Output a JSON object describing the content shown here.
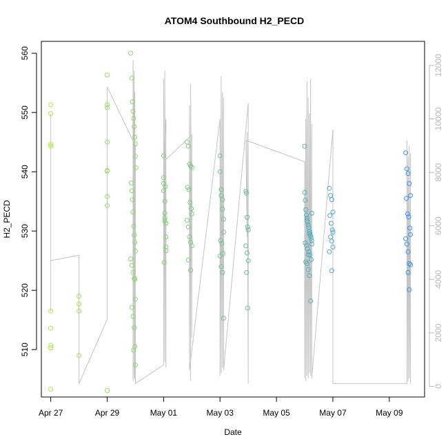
{
  "chart_data": {
    "type": "scatter",
    "title": "ATOM4 Southbound H2_PECD",
    "xlabel": "Date",
    "ylabel": "H2_PECD",
    "x_ticks": [
      "Apr 27",
      "Apr 29",
      "May 01",
      "May 03",
      "May 05",
      "May 07",
      "May 09"
    ],
    "y_ticks": [
      510,
      520,
      530,
      540,
      550,
      560
    ],
    "y2_ticks": [
      0,
      2000,
      4000,
      6000,
      8000,
      10000,
      12000
    ],
    "xlim": [
      "2017-04-26T16:00",
      "2017-05-10T06:00"
    ],
    "ylim": [
      502,
      562
    ],
    "y2lim": [
      -400,
      12900
    ],
    "grid": false,
    "colors": {
      "axis": "#000000",
      "secondary_axis": "#b8b8b8",
      "secondary_line": "#c4c4c4",
      "gradient_start": "#a6f032",
      "gradient_end": "#2e96f5"
    },
    "series": [
      {
        "type": "points",
        "x": [
          "2017-04-27T00:00",
          "2017-04-27T00:00",
          "2017-04-27T00:00",
          "2017-04-27T00:00",
          "2017-04-27T00:00",
          "2017-04-27T00:00",
          "2017-04-27T00:00",
          "2017-04-27T00:00",
          "2017-04-27T00:00",
          "2017-04-28T00:00",
          "2017-04-28T00:00",
          "2017-04-28T00:00",
          "2017-04-28T00:00",
          "2017-04-29T00:00",
          "2017-04-29T00:00",
          "2017-04-29T00:00",
          "2017-04-29T00:00",
          "2017-04-29T00:00",
          "2017-04-29T00:00",
          "2017-04-29T00:00",
          "2017-04-29T00:00",
          "2017-04-29T00:00",
          "2017-04-29T20:00",
          "2017-04-29T21:00",
          "2017-04-29T21:30",
          "2017-04-29T22:00",
          "2017-04-29T22:30",
          "2017-04-29T23:00",
          "2017-04-29T23:30",
          "2017-04-30T00:00",
          "2017-04-30T00:00",
          "2017-04-30T00:30",
          "2017-04-29T20:30",
          "2017-04-29T21:00",
          "2017-04-29T21:30",
          "2017-04-29T22:00",
          "2017-04-29T22:30",
          "2017-04-29T23:00",
          "2017-04-29T23:30",
          "2017-04-30T00:00",
          "2017-04-29T20:00",
          "2017-04-29T21:00",
          "2017-04-29T22:00",
          "2017-04-29T23:00",
          "2017-04-29T23:30",
          "2017-04-30T00:00",
          "2017-04-29T21:00",
          "2017-04-29T22:00",
          "2017-04-29T23:00",
          "2017-04-29T23:30",
          "2017-04-29T22:30",
          "2017-04-30T00:00",
          "2017-05-01T00:00",
          "2017-05-01T00:00",
          "2017-05-01T00:00",
          "2017-05-01T00:00",
          "2017-05-01T01:00",
          "2017-05-01T01:00",
          "2017-05-01T01:00",
          "2017-05-01T01:00",
          "2017-05-01T02:00",
          "2017-05-01T02:00",
          "2017-05-01T02:00",
          "2017-05-01T02:00",
          "2017-05-01T00:30",
          "2017-05-01T01:30",
          "2017-05-01T20:00",
          "2017-05-01T21:00",
          "2017-05-01T22:00",
          "2017-05-01T23:00",
          "2017-05-02T00:00",
          "2017-05-01T20:30",
          "2017-05-01T21:30",
          "2017-05-01T22:30",
          "2017-05-01T23:30",
          "2017-05-02T00:00",
          "2017-05-01T20:00",
          "2017-05-01T21:00",
          "2017-05-01T22:00",
          "2017-05-01T23:00",
          "2017-05-02T00:00",
          "2017-05-01T21:00",
          "2017-05-01T23:00",
          "2017-05-03T00:00",
          "2017-05-03T00:00",
          "2017-05-03T01:00",
          "2017-05-03T01:00",
          "2017-05-03T02:00",
          "2017-05-03T02:00",
          "2017-05-03T03:00",
          "2017-05-03T03:00",
          "2017-05-03T00:30",
          "2017-05-03T01:30",
          "2017-05-03T02:30",
          "2017-05-03T00:00",
          "2017-05-03T01:00",
          "2017-05-03T02:00",
          "2017-05-03T03:00",
          "2017-05-03T22:00",
          "2017-05-03T22:30",
          "2017-05-03T23:00",
          "2017-05-03T23:30",
          "2017-05-04T00:00",
          "2017-05-03T22:00",
          "2017-05-03T23:00",
          "2017-05-04T00:00",
          "2017-05-03T22:30",
          "2017-05-03T23:30",
          "2017-05-06T00:00",
          "2017-05-06T00:00",
          "2017-05-06T00:30",
          "2017-05-06T01:00",
          "2017-05-06T01:30",
          "2017-05-06T02:00",
          "2017-05-06T02:30",
          "2017-05-06T03:00",
          "2017-05-06T03:30",
          "2017-05-06T04:00",
          "2017-05-06T04:30",
          "2017-05-06T05:00",
          "2017-05-06T05:30",
          "2017-05-06T06:00",
          "2017-05-06T00:30",
          "2017-05-06T01:30",
          "2017-05-06T02:30",
          "2017-05-06T03:30",
          "2017-05-06T04:30",
          "2017-05-06T05:30",
          "2017-05-06T01:00",
          "2017-05-06T02:00",
          "2017-05-06T03:00",
          "2017-05-06T04:00",
          "2017-05-06T05:00",
          "2017-05-06T06:00",
          "2017-05-06T02:00",
          "2017-05-06T04:00",
          "2017-05-06T06:00",
          "2017-05-06T03:00",
          "2017-05-06T21:00",
          "2017-05-06T22:00",
          "2017-05-06T23:00",
          "2017-05-07T00:00",
          "2017-05-06T21:30",
          "2017-05-06T22:30",
          "2017-05-06T23:30",
          "2017-05-07T00:00",
          "2017-05-06T22:00",
          "2017-05-06T23:00",
          "2017-05-07T00:00",
          "2017-05-06T21:00",
          "2017-05-06T23:00",
          "2017-05-09T14:00",
          "2017-05-09T15:00",
          "2017-05-09T16:00",
          "2017-05-09T17:00",
          "2017-05-09T18:00",
          "2017-05-09T14:30",
          "2017-05-09T15:30",
          "2017-05-09T16:30",
          "2017-05-09T17:30",
          "2017-05-09T18:00",
          "2017-05-09T14:00",
          "2017-05-09T15:00",
          "2017-05-09T16:00",
          "2017-05-09T17:00",
          "2017-05-09T18:00",
          "2017-05-09T16:00",
          "2017-05-09T17:00"
        ],
        "y": [
          551.3,
          549.8,
          544.6,
          544.3,
          516.5,
          513.6,
          510.7,
          510.3,
          503.3,
          519.0,
          517.7,
          516.5,
          509.0,
          556.3,
          551.3,
          550.8,
          545.0,
          540.2,
          540.1,
          535.8,
          534.3,
          503.1,
          560.0,
          555.8,
          551.8,
          550.2,
          549.0,
          547.6,
          545.8,
          544.7,
          542.6,
          540.7,
          538.1,
          536.8,
          535.3,
          533.2,
          530.8,
          529.3,
          528.1,
          526.6,
          525.3,
          524.2,
          523.0,
          522.0,
          521.8,
          518.5,
          517.1,
          515.6,
          513.7,
          510.5,
          509.9,
          507.4,
          542.7,
          539.0,
          538.0,
          536.8,
          535.0,
          533.0,
          532.2,
          531.7,
          531.3,
          529.0,
          527.3,
          526.7,
          524.7,
          537.5,
          545.0,
          544.3,
          541.3,
          541.0,
          540.7,
          537.4,
          537.0,
          534.8,
          533.8,
          532.9,
          531.8,
          530.7,
          529.0,
          528.1,
          527.5,
          525.1,
          523.4,
          542.7,
          540.0,
          537.0,
          536.0,
          535.3,
          533.7,
          532.0,
          529.8,
          528.4,
          527.9,
          526.2,
          525.8,
          524.0,
          523.0,
          515.3,
          536.7,
          536.4,
          532.3,
          530.7,
          530.2,
          527.5,
          526.3,
          525.0,
          523.0,
          517.0,
          544.3,
          536.5,
          535.2,
          533.6,
          532.7,
          532.2,
          531.5,
          531.0,
          530.6,
          530.0,
          529.7,
          529.2,
          528.8,
          528.4,
          528.0,
          527.6,
          527.0,
          526.5,
          526.0,
          525.2,
          524.8,
          524.5,
          523.5,
          522.5,
          518.2,
          533.0,
          531.8,
          529.5,
          527.8,
          526.0,
          537.2,
          536.0,
          535.3,
          533.2,
          532.6,
          531.3,
          530.2,
          529.8,
          529.0,
          528.3,
          527.3,
          526.5,
          523.3,
          543.2,
          540.5,
          539.7,
          538.0,
          536.0,
          535.5,
          532.9,
          532.4,
          530.5,
          529.4,
          528.7,
          527.8,
          526.5,
          524.5,
          524.3,
          523.0,
          520.1
        ]
      },
      {
        "type": "line",
        "axis": "right",
        "x": [
          "2017-04-27T00:00",
          "2017-04-27T00:00",
          "2017-04-27T00:00",
          "2017-04-27T00:00",
          "2017-04-28T00:00",
          "2017-04-28T00:00",
          "2017-04-29T00:00",
          "2017-04-29T00:00",
          "2017-04-30T00:00",
          "2017-04-30T00:00",
          "2017-04-29T22:00",
          "2017-04-29T22:00",
          "2017-04-29T23:00",
          "2017-04-29T23:00",
          "2017-04-29T23:30",
          "2017-04-29T23:30",
          "2017-04-30T00:00",
          "2017-05-01T00:00",
          "2017-05-01T00:00",
          "2017-05-01T01:00",
          "2017-05-01T01:00",
          "2017-05-01T02:00",
          "2017-05-01T02:00",
          "2017-05-01T00:00",
          "2017-05-02T00:00",
          "2017-05-02T00:00",
          "2017-05-01T23:00",
          "2017-05-01T23:00",
          "2017-05-01T22:00",
          "2017-05-01T22:00",
          "2017-05-03T00:00",
          "2017-05-03T00:00",
          "2017-05-03T01:00",
          "2017-05-03T01:00",
          "2017-05-03T02:00",
          "2017-05-03T02:00",
          "2017-05-03T03:00",
          "2017-05-03T03:00",
          "2017-05-04T00:00",
          "2017-05-04T00:00",
          "2017-05-03T23:00",
          "2017-05-03T23:00",
          "2017-05-03T22:00",
          "2017-05-06T00:00",
          "2017-05-06T00:00",
          "2017-05-06T01:00",
          "2017-05-06T01:00",
          "2017-05-06T02:00",
          "2017-05-06T02:00",
          "2017-05-06T03:00",
          "2017-05-06T03:00",
          "2017-05-06T04:00",
          "2017-05-06T04:00",
          "2017-05-06T05:00",
          "2017-05-06T05:00",
          "2017-05-06T06:00",
          "2017-05-06T06:00",
          "2017-05-07T00:00",
          "2017-05-07T00:00",
          "2017-05-07T00:00",
          "2017-05-09T15:00",
          "2017-05-09T15:00",
          "2017-05-09T16:00",
          "2017-05-09T16:00",
          "2017-05-09T17:00",
          "2017-05-09T17:00",
          "2017-05-09T18:00",
          "2017-05-09T18:00",
          "2017-05-09T18:00"
        ],
        "y": [
          2800,
          10200,
          4100,
          4700,
          4900,
          100,
          2500,
          11200,
          9000,
          100,
          12200,
          200,
          11800,
          300,
          11000,
          400,
          100,
          800,
          11500,
          900,
          11800,
          700,
          10000,
          8400,
          9400,
          1800,
          11300,
          200,
          10500,
          600,
          10000,
          400,
          11600,
          500,
          11000,
          700,
          10800,
          600,
          10600,
          100,
          9500,
          5600,
          9200,
          8400,
          300,
          10000,
          200,
          11400,
          400,
          10800,
          300,
          10200,
          500,
          11500,
          400,
          9800,
          300,
          9600,
          2800,
          100,
          100,
          9200,
          200,
          8600,
          300,
          9000,
          200,
          8700,
          100
        ]
      }
    ]
  }
}
